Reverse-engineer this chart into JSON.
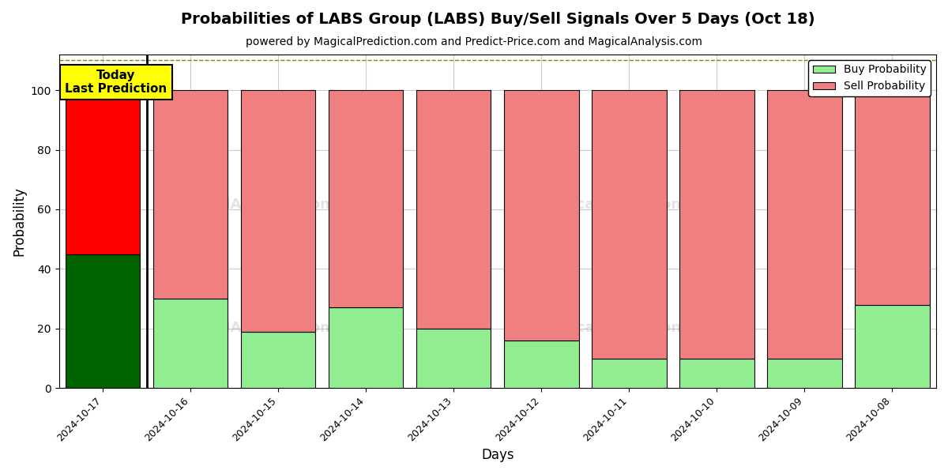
{
  "title": "Probabilities of LABS Group (LABS) Buy/Sell Signals Over 5 Days (Oct 18)",
  "subtitle": "powered by MagicalPrediction.com and Predict-Price.com and MagicalAnalysis.com",
  "xlabel": "Days",
  "ylabel": "Probability",
  "dates": [
    "2024-10-17",
    "2024-10-16",
    "2024-10-15",
    "2024-10-14",
    "2024-10-13",
    "2024-10-12",
    "2024-10-11",
    "2024-10-10",
    "2024-10-09",
    "2024-10-08"
  ],
  "buy_values": [
    45,
    30,
    19,
    27,
    20,
    16,
    10,
    10,
    10,
    28
  ],
  "sell_values": [
    55,
    70,
    81,
    73,
    80,
    84,
    90,
    90,
    90,
    72
  ],
  "today_buy_color": "#006400",
  "today_sell_color": "#FF0000",
  "buy_color": "#90EE90",
  "sell_color": "#F08080",
  "today_label_bg": "#FFFF00",
  "today_label_text": "Today\nLast Prediction",
  "ylim": [
    0,
    112
  ],
  "yticks": [
    0,
    20,
    40,
    60,
    80,
    100
  ],
  "dashed_line_y": 110,
  "bar_width": 0.85,
  "bar_edgecolor": "#000000",
  "legend_buy_label": "Buy Probability",
  "legend_sell_label": "Sell Probability",
  "background_color": "#ffffff",
  "grid_color": "#cccccc",
  "title_fontsize": 14,
  "subtitle_fontsize": 10,
  "axis_label_fontsize": 12
}
